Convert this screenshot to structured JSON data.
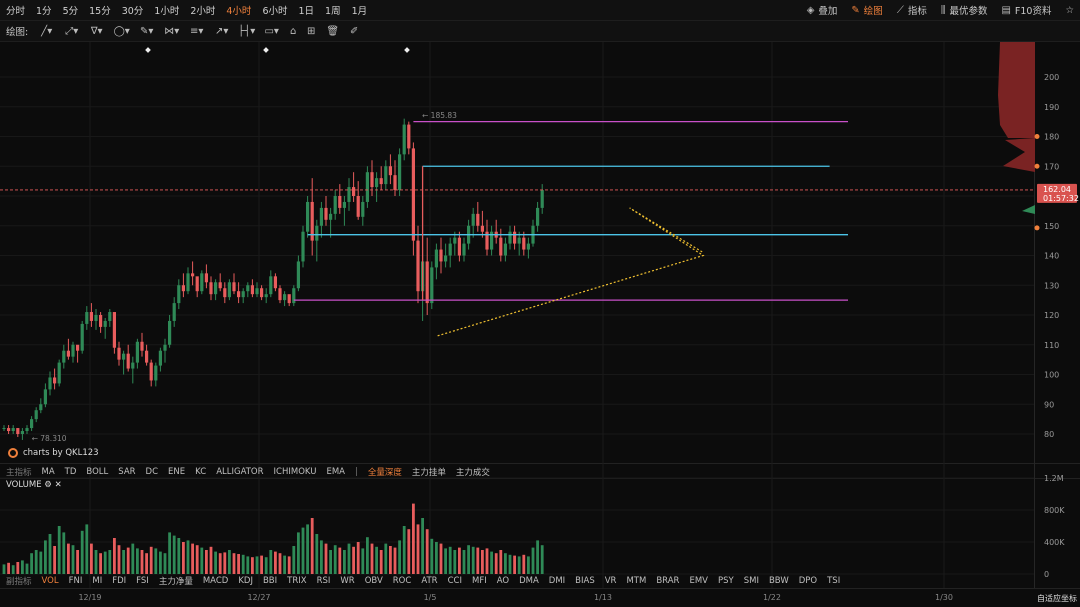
{
  "topbar": {
    "timeframes": [
      "分时",
      "1分",
      "5分",
      "15分",
      "30分",
      "1小时",
      "2小时",
      "4小时",
      "6小时",
      "1日",
      "1周",
      "1月"
    ],
    "active_timeframe": "4小时",
    "right": [
      {
        "label": "叠加",
        "icon": "layers-icon"
      },
      {
        "label": "绘图",
        "icon": "pencil-icon",
        "active": true
      },
      {
        "label": "指标",
        "icon": "indicator-icon"
      },
      {
        "label": "最优参数",
        "icon": "sliders-icon"
      },
      {
        "label": "F10资料",
        "icon": "f10-icon"
      }
    ]
  },
  "toolbar": {
    "label": "绘图:",
    "tools": [
      "line-tool-icon",
      "segment-tool-icon",
      "fib-tool-icon",
      "shape-tool-icon",
      "brush-tool-icon",
      "pattern-tool-icon",
      "text-tool-icon",
      "arrow-tool-icon",
      "measure-tool-icon",
      "comment-tool-icon",
      "magnet-tool-icon",
      "lock-tool-icon",
      "delete-tool-icon",
      "clear-tool-icon"
    ]
  },
  "indicators_main": {
    "prefix": "主指标",
    "items": [
      "MA",
      "TD",
      "BOLL",
      "SAR",
      "DC",
      "ENE",
      "KC",
      "ALLIGATOR",
      "ICHIMOKU",
      "EMA"
    ],
    "extra": [
      "全量深度",
      "主力挂单",
      "主力成交"
    ]
  },
  "indicators_sub": {
    "prefix": "副指标",
    "active": "VOL",
    "items": [
      "VOL",
      "FNI",
      "MI",
      "FDI",
      "FSI",
      "主力净量",
      "MACD",
      "KDJ",
      "BBI",
      "TRIX",
      "RSI",
      "WR",
      "OBV",
      "ROC",
      "ATR",
      "CCI",
      "MFI",
      "AO",
      "DMA",
      "DMI",
      "BIAS",
      "VR",
      "MTM",
      "BRAR",
      "EMV",
      "PSY",
      "SMI",
      "BBW",
      "DPO",
      "TSI"
    ]
  },
  "watermark": "charts by QKL123",
  "volume_label": "VOLUME",
  "autofit_label": "自适应坐标",
  "colors": {
    "up": "#2f8a57",
    "down": "#e85d5d",
    "cyan": "#4cc4e8",
    "magenta": "#c850c8",
    "dotted": "#f0c030",
    "accent": "#f0803c"
  },
  "chart_data": {
    "type": "candlestick",
    "price_axis": [
      200,
      190,
      180,
      170,
      160,
      150,
      140,
      130,
      120,
      110,
      100,
      90,
      80
    ],
    "volume_axis": [
      "1.2M",
      "800K",
      "400K",
      "0"
    ],
    "x_labels": [
      "12/19",
      "12/27",
      "1/5",
      "1/13",
      "1/22",
      "1/30"
    ],
    "current_price": "162.04",
    "countdown": "01:57:32",
    "high_label": "185.83",
    "low_label": "78.310",
    "depth_markers": [
      180,
      170,
      155
    ],
    "levels": [
      {
        "price": 185,
        "color": "magenta",
        "from_index": 89,
        "to_index": 140
      },
      {
        "price": 170,
        "color": "cyan",
        "from_index": 91,
        "to_index": 136
      },
      {
        "price": 147,
        "color": "cyan",
        "from_index": 66,
        "to_index": 140
      },
      {
        "price": 125,
        "color": "magenta",
        "from_index": 63,
        "to_index": 140
      }
    ],
    "candles": [
      [
        82,
        83,
        81,
        82,
        120
      ],
      [
        82,
        83,
        80,
        81,
        140
      ],
      [
        81,
        83,
        80,
        82,
        110
      ],
      [
        82,
        82,
        79,
        80,
        150
      ],
      [
        80,
        82,
        78,
        81,
        170
      ],
      [
        81,
        83,
        80,
        82,
        130
      ],
      [
        82,
        86,
        81,
        85,
        260
      ],
      [
        85,
        89,
        84,
        88,
        300
      ],
      [
        88,
        92,
        87,
        90,
        280
      ],
      [
        90,
        97,
        89,
        95,
        420
      ],
      [
        95,
        101,
        93,
        99,
        500
      ],
      [
        99,
        102,
        95,
        97,
        350
      ],
      [
        97,
        105,
        96,
        104,
        600
      ],
      [
        104,
        110,
        102,
        108,
        520
      ],
      [
        108,
        112,
        105,
        106,
        380
      ],
      [
        106,
        111,
        104,
        110,
        360
      ],
      [
        110,
        109,
        104,
        108,
        300
      ],
      [
        108,
        118,
        107,
        117,
        540
      ],
      [
        117,
        123,
        115,
        121,
        620
      ],
      [
        121,
        124,
        116,
        118,
        380
      ],
      [
        118,
        122,
        115,
        120,
        300
      ],
      [
        120,
        121,
        114,
        116,
        260
      ],
      [
        116,
        119,
        112,
        118,
        280
      ],
      [
        118,
        122,
        116,
        121,
        300
      ],
      [
        121,
        120,
        107,
        109,
        450
      ],
      [
        109,
        111,
        103,
        105,
        360
      ],
      [
        105,
        108,
        100,
        107,
        300
      ],
      [
        107,
        110,
        101,
        102,
        330
      ],
      [
        102,
        106,
        97,
        104,
        380
      ],
      [
        104,
        112,
        102,
        111,
        320
      ],
      [
        111,
        114,
        106,
        108,
        300
      ],
      [
        108,
        110,
        103,
        104,
        260
      ],
      [
        104,
        105,
        96,
        98,
        340
      ],
      [
        98,
        104,
        96,
        103,
        320
      ],
      [
        103,
        109,
        101,
        108,
        280
      ],
      [
        108,
        112,
        104,
        110,
        260
      ],
      [
        110,
        120,
        109,
        118,
        520
      ],
      [
        118,
        126,
        116,
        124,
        480
      ],
      [
        124,
        132,
        122,
        130,
        450
      ],
      [
        130,
        134,
        126,
        128,
        400
      ],
      [
        128,
        136,
        127,
        134,
        420
      ],
      [
        134,
        138,
        130,
        133,
        380
      ],
      [
        133,
        132,
        126,
        128,
        360
      ],
      [
        128,
        135,
        127,
        134,
        330
      ],
      [
        134,
        137,
        129,
        131,
        300
      ],
      [
        131,
        133,
        125,
        127,
        340
      ],
      [
        127,
        132,
        125,
        131,
        280
      ],
      [
        131,
        134,
        128,
        129,
        260
      ],
      [
        129,
        131,
        124,
        126,
        270
      ],
      [
        126,
        132,
        125,
        131,
        300
      ],
      [
        131,
        134,
        127,
        128,
        260
      ],
      [
        128,
        131,
        124,
        126,
        250
      ],
      [
        126,
        129,
        124,
        128,
        240
      ],
      [
        128,
        131,
        126,
        130,
        220
      ],
      [
        130,
        132,
        126,
        127,
        210
      ],
      [
        127,
        131,
        126,
        129,
        220
      ],
      [
        129,
        130,
        125,
        126,
        230
      ],
      [
        126,
        129,
        124,
        127,
        210
      ],
      [
        127,
        135,
        126,
        133,
        300
      ],
      [
        133,
        134,
        128,
        129,
        280
      ],
      [
        129,
        130,
        124,
        125,
        260
      ],
      [
        125,
        128,
        123,
        127,
        230
      ],
      [
        127,
        126,
        123,
        124,
        220
      ],
      [
        124,
        130,
        123,
        129,
        350
      ],
      [
        129,
        140,
        128,
        138,
        520
      ],
      [
        138,
        150,
        136,
        148,
        580
      ],
      [
        148,
        160,
        146,
        158,
        620
      ],
      [
        158,
        166,
        140,
        145,
        700
      ],
      [
        145,
        152,
        138,
        150,
        500
      ],
      [
        150,
        158,
        146,
        156,
        420
      ],
      [
        156,
        160,
        150,
        152,
        380
      ],
      [
        152,
        156,
        146,
        154,
        300
      ],
      [
        154,
        162,
        152,
        160,
        360
      ],
      [
        160,
        164,
        154,
        156,
        330
      ],
      [
        156,
        160,
        150,
        158,
        300
      ],
      [
        158,
        166,
        155,
        163,
        380
      ],
      [
        163,
        168,
        158,
        160,
        340
      ],
      [
        160,
        165,
        152,
        153,
        400
      ],
      [
        153,
        160,
        150,
        158,
        320
      ],
      [
        158,
        170,
        156,
        168,
        460
      ],
      [
        168,
        172,
        160,
        163,
        380
      ],
      [
        163,
        168,
        158,
        166,
        340
      ],
      [
        166,
        170,
        162,
        164,
        300
      ],
      [
        164,
        172,
        162,
        170,
        380
      ],
      [
        170,
        174,
        164,
        167,
        350
      ],
      [
        167,
        172,
        160,
        162,
        330
      ],
      [
        162,
        176,
        160,
        174,
        420
      ],
      [
        174,
        186,
        172,
        184,
        600
      ],
      [
        184,
        185,
        174,
        176,
        560
      ],
      [
        176,
        178,
        140,
        145,
        880
      ],
      [
        145,
        150,
        124,
        128,
        620
      ],
      [
        128,
        142,
        118,
        138,
        700
      ],
      [
        138,
        146,
        120,
        124,
        560
      ],
      [
        124,
        138,
        122,
        136,
        440
      ],
      [
        136,
        144,
        132,
        142,
        400
      ],
      [
        142,
        146,
        134,
        138,
        380
      ],
      [
        138,
        144,
        136,
        140,
        320
      ],
      [
        140,
        146,
        136,
        144,
        340
      ],
      [
        144,
        148,
        140,
        146,
        300
      ],
      [
        146,
        148,
        138,
        140,
        330
      ],
      [
        140,
        146,
        138,
        144,
        300
      ],
      [
        144,
        152,
        142,
        150,
        360
      ],
      [
        150,
        156,
        146,
        154,
        340
      ],
      [
        154,
        158,
        148,
        150,
        330
      ],
      [
        150,
        155,
        146,
        148,
        300
      ],
      [
        148,
        152,
        140,
        142,
        320
      ],
      [
        142,
        150,
        140,
        148,
        280
      ],
      [
        148,
        152,
        144,
        146,
        260
      ],
      [
        146,
        149,
        138,
        140,
        300
      ],
      [
        140,
        146,
        138,
        144,
        260
      ],
      [
        144,
        150,
        142,
        148,
        240
      ],
      [
        148,
        150,
        142,
        144,
        230
      ],
      [
        144,
        148,
        140,
        146,
        220
      ],
      [
        146,
        148,
        140,
        142,
        240
      ],
      [
        142,
        146,
        139,
        144,
        220
      ],
      [
        144,
        152,
        143,
        150,
        330
      ],
      [
        150,
        158,
        148,
        156,
        420
      ],
      [
        156,
        164,
        154,
        162,
        360
      ]
    ]
  }
}
